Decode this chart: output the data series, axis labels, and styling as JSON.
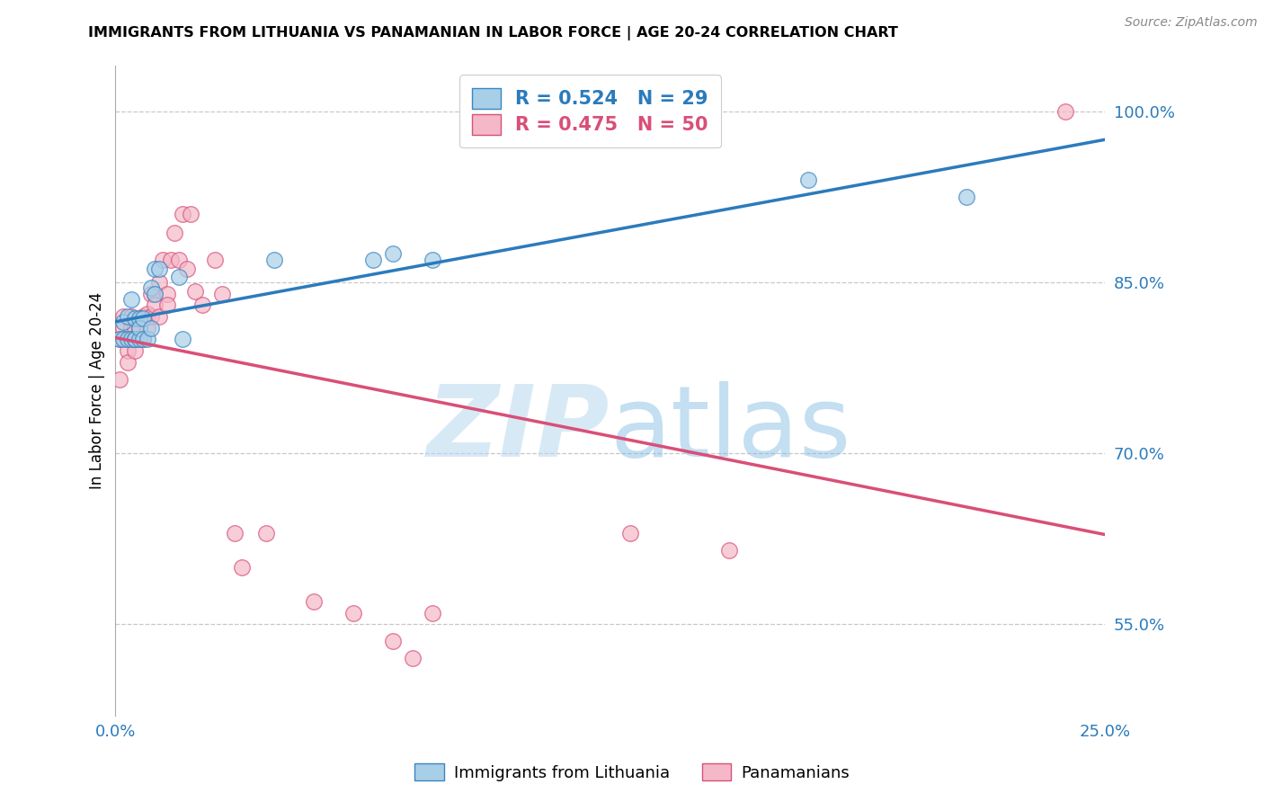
{
  "title": "IMMIGRANTS FROM LITHUANIA VS PANAMANIAN IN LABOR FORCE | AGE 20-24 CORRELATION CHART",
  "source": "Source: ZipAtlas.com",
  "ylabel": "In Labor Force | Age 20-24",
  "xlim": [
    0.0,
    0.25
  ],
  "ylim": [
    0.47,
    1.04
  ],
  "xticks": [
    0.0,
    0.05,
    0.1,
    0.15,
    0.2,
    0.25
  ],
  "xticklabels": [
    "0.0%",
    "",
    "",
    "",
    "",
    "25.0%"
  ],
  "ytick_vals": [
    0.55,
    0.7,
    0.85,
    1.0
  ],
  "ytick_labels": [
    "55.0%",
    "70.0%",
    "85.0%",
    "100.0%"
  ],
  "blue_R": 0.524,
  "blue_N": 29,
  "pink_R": 0.475,
  "pink_N": 50,
  "blue_dot_color": "#a8cfe8",
  "blue_edge_color": "#3a85c0",
  "pink_dot_color": "#f4b8c8",
  "pink_edge_color": "#d9507a",
  "blue_line_color": "#2b7bbc",
  "pink_line_color": "#d94f77",
  "legend_label_blue": "Immigrants from Lithuania",
  "legend_label_pink": "Panamanians",
  "watermark_zip": "ZIP",
  "watermark_atlas": "atlas",
  "blue_x": [
    0.001,
    0.002,
    0.002,
    0.003,
    0.003,
    0.004,
    0.004,
    0.005,
    0.005,
    0.005,
    0.006,
    0.006,
    0.006,
    0.007,
    0.007,
    0.008,
    0.009,
    0.009,
    0.01,
    0.01,
    0.011,
    0.016,
    0.017,
    0.04,
    0.065,
    0.07,
    0.08,
    0.175,
    0.215
  ],
  "blue_y": [
    0.8,
    0.815,
    0.8,
    0.82,
    0.8,
    0.835,
    0.8,
    0.8,
    0.818,
    0.8,
    0.8,
    0.818,
    0.81,
    0.818,
    0.8,
    0.8,
    0.845,
    0.81,
    0.862,
    0.84,
    0.862,
    0.855,
    0.8,
    0.87,
    0.87,
    0.875,
    0.87,
    0.94,
    0.925
  ],
  "pink_x": [
    0.001,
    0.001,
    0.002,
    0.002,
    0.002,
    0.003,
    0.003,
    0.003,
    0.004,
    0.004,
    0.004,
    0.005,
    0.005,
    0.005,
    0.006,
    0.006,
    0.007,
    0.007,
    0.008,
    0.008,
    0.009,
    0.009,
    0.01,
    0.01,
    0.011,
    0.011,
    0.012,
    0.013,
    0.013,
    0.014,
    0.015,
    0.016,
    0.017,
    0.018,
    0.019,
    0.02,
    0.022,
    0.025,
    0.027,
    0.03,
    0.032,
    0.038,
    0.05,
    0.06,
    0.07,
    0.075,
    0.08,
    0.13,
    0.155,
    0.24
  ],
  "pink_y": [
    0.8,
    0.765,
    0.82,
    0.8,
    0.81,
    0.79,
    0.8,
    0.78,
    0.81,
    0.8,
    0.82,
    0.79,
    0.81,
    0.8,
    0.81,
    0.8,
    0.82,
    0.8,
    0.822,
    0.81,
    0.84,
    0.82,
    0.84,
    0.83,
    0.85,
    0.82,
    0.87,
    0.84,
    0.83,
    0.87,
    0.893,
    0.87,
    0.91,
    0.862,
    0.91,
    0.842,
    0.83,
    0.87,
    0.84,
    0.63,
    0.6,
    0.63,
    0.57,
    0.56,
    0.535,
    0.52,
    0.56,
    0.63,
    0.615,
    1.0
  ]
}
